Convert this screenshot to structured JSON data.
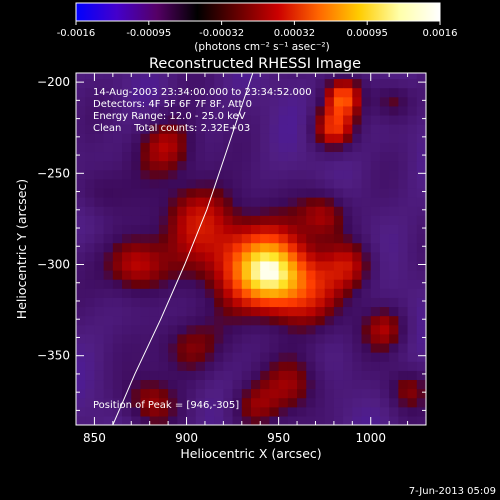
{
  "chart_data": {
    "type": "heatmap",
    "title": "Reconstructed RHESSI Image",
    "xlabel": "Heliocentric X (arcsec)",
    "ylabel": "Heliocentric Y (arcsec)",
    "xlim": [
      840,
      1030
    ],
    "ylim": [
      -388,
      -195
    ],
    "x_ticks": [
      850,
      900,
      950,
      1000
    ],
    "y_ticks": [
      -200,
      -250,
      -300,
      -350
    ],
    "colorbar": {
      "ticks": [
        "-0.0016",
        "-0.00095",
        "-0.00032",
        "0.00032",
        "0.00095",
        "0.0016"
      ],
      "min": -0.0016,
      "max": 0.0016,
      "units": "(photons cm⁻² s⁻¹ asec⁻²)",
      "colors": [
        "#0000ff",
        "#4400cc",
        "#550066",
        "#000000",
        "#660000",
        "#cc0000",
        "#ff6600",
        "#ffcc00",
        "#ffffaa",
        "#ffffff"
      ]
    },
    "annotations": [
      "14-Aug-2003 23:34:00.000 to 23:34:52.000",
      "Detectors: 4F 5F 6F 7F 8F, Att 0",
      "Energy Range: 12.0 - 25.0 keV",
      "Clean    Total counts: 2.32E+03"
    ],
    "peak_label": "Position of Peak = [946,-305]",
    "peak": [
      946,
      -305
    ],
    "sources": [
      {
        "x": 946,
        "y": -305,
        "amp": 1.0,
        "sigma": 14
      },
      {
        "x": 925,
        "y": -292,
        "amp": 0.45,
        "sigma": 18
      },
      {
        "x": 965,
        "y": -318,
        "amp": 0.35,
        "sigma": 16
      },
      {
        "x": 890,
        "y": -235,
        "amp": 0.45,
        "sigma": 12
      },
      {
        "x": 872,
        "y": -300,
        "amp": 0.55,
        "sigma": 12
      },
      {
        "x": 905,
        "y": -270,
        "amp": 0.35,
        "sigma": 14
      },
      {
        "x": 980,
        "y": -225,
        "amp": 0.55,
        "sigma": 8
      },
      {
        "x": 985,
        "y": -208,
        "amp": 0.6,
        "sigma": 7
      },
      {
        "x": 1012,
        "y": -210,
        "amp": 0.35,
        "sigma": 8
      },
      {
        "x": 975,
        "y": -272,
        "amp": 0.45,
        "sigma": 10
      },
      {
        "x": 990,
        "y": -300,
        "amp": 0.4,
        "sigma": 10
      },
      {
        "x": 1008,
        "y": -335,
        "amp": 0.35,
        "sigma": 9
      },
      {
        "x": 960,
        "y": -365,
        "amp": 0.35,
        "sigma": 12
      },
      {
        "x": 900,
        "y": -345,
        "amp": 0.4,
        "sigma": 12
      },
      {
        "x": 880,
        "y": -375,
        "amp": 0.35,
        "sigma": 10
      },
      {
        "x": 935,
        "y": -378,
        "amp": 0.3,
        "sigma": 10
      },
      {
        "x": 1020,
        "y": -368,
        "amp": 0.3,
        "sigma": 8
      },
      {
        "x": 852,
        "y": -260,
        "amp": 0.25,
        "sigma": 10
      }
    ],
    "limb": [
      [
        860,
        -388
      ],
      [
        872,
        -360
      ],
      [
        886,
        -330
      ],
      [
        899,
        -300
      ],
      [
        911,
        -270
      ],
      [
        921,
        -240
      ],
      [
        931,
        -210
      ],
      [
        936,
        -195
      ]
    ]
  },
  "footer": {
    "date": "7-Jun-2013 05:09"
  }
}
